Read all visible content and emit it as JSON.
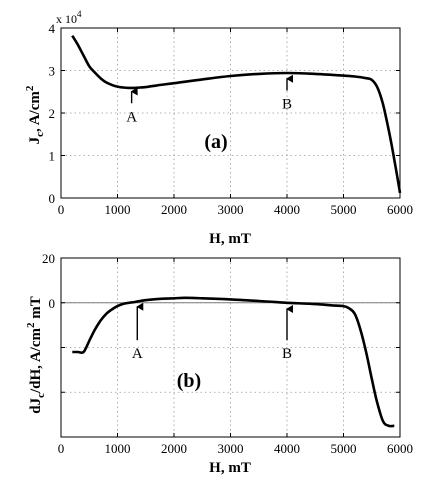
{
  "chart_data": [
    {
      "type": "line",
      "panel_label": "(a)",
      "xlabel": "H, mT",
      "ylabel": "J_c, A/cm^2",
      "ylabel_parts": {
        "base": "J",
        "sub": "c",
        "mid": ", A/cm",
        "sup": "2"
      },
      "exponent_label": {
        "base": "x 10",
        "sup": "4"
      },
      "xlim": [
        0,
        6000
      ],
      "ylim": [
        0,
        4
      ],
      "xticks": [
        0,
        1000,
        2000,
        3000,
        4000,
        5000,
        6000
      ],
      "yticks": [
        0,
        1,
        2,
        3,
        4
      ],
      "xtick_labels": [
        "0",
        "1000",
        "2000",
        "3000",
        "4000",
        "5000",
        "6000"
      ],
      "ytick_labels": [
        "0",
        "1",
        "2",
        "3",
        "4"
      ],
      "grid": true,
      "x": [
        200,
        300,
        400,
        500,
        600,
        700,
        800,
        900,
        1000,
        1100,
        1200,
        1300,
        1400,
        1500,
        1700,
        2000,
        2500,
        3000,
        3500,
        4000,
        4500,
        5000,
        5200,
        5400,
        5500,
        5600,
        5700,
        5800,
        5900,
        6000
      ],
      "y": [
        3.82,
        3.6,
        3.35,
        3.1,
        2.95,
        2.82,
        2.72,
        2.66,
        2.62,
        2.6,
        2.59,
        2.59,
        2.6,
        2.61,
        2.65,
        2.7,
        2.79,
        2.87,
        2.92,
        2.94,
        2.92,
        2.88,
        2.86,
        2.82,
        2.78,
        2.6,
        2.2,
        1.6,
        0.9,
        0.12
      ],
      "annotations": [
        {
          "text": "A",
          "x": 1250,
          "y_tip": 2.6,
          "y_label": 1.9
        },
        {
          "text": "B",
          "x": 4000,
          "y_tip": 2.9,
          "y_label": 2.2
        }
      ]
    },
    {
      "type": "line",
      "panel_label": "(b)",
      "xlabel": "H, mT",
      "ylabel": "dJ_c/dH, A/cm^2 mT",
      "ylabel_parts": {
        "pre": "dJ",
        "sub": "c",
        "mid": "/dH, A/cm",
        "sup": "2",
        "post": " mT"
      },
      "xlim": [
        0,
        6000
      ],
      "ylim": [
        -60,
        20
      ],
      "xticks": [
        0,
        1000,
        2000,
        3000,
        4000,
        5000,
        6000
      ],
      "yticks": [
        -60,
        -40,
        -20,
        0,
        20
      ],
      "xtick_labels": [
        "0",
        "1000",
        "2000",
        "3000",
        "4000",
        "5000",
        "6000"
      ],
      "ytick_labels": [
        "",
        "",
        "",
        "0",
        "20"
      ],
      "grid": true,
      "reference_line": 0,
      "x": [
        200,
        300,
        400,
        500,
        600,
        700,
        800,
        900,
        1000,
        1100,
        1200,
        1300,
        1400,
        1600,
        1800,
        2000,
        2200,
        2500,
        3000,
        3500,
        4000,
        4500,
        4800,
        5000,
        5100,
        5200,
        5300,
        5400,
        5500,
        5600,
        5700,
        5800,
        5900
      ],
      "y": [
        -22,
        -22,
        -22,
        -17,
        -12,
        -8,
        -5,
        -3,
        -1.5,
        -0.5,
        0,
        0.3,
        0.8,
        1.4,
        1.8,
        2,
        2.2,
        2,
        1.5,
        0.8,
        0,
        -0.6,
        -1.2,
        -1.5,
        -2.5,
        -5,
        -12,
        -22,
        -34,
        -45,
        -53,
        -55,
        -55
      ],
      "annotations": [
        {
          "text": "A",
          "x": 1350,
          "y_tip": 0,
          "y_label": -23
        },
        {
          "text": "B",
          "x": 4000,
          "y_tip": -1,
          "y_label": -23
        }
      ]
    }
  ]
}
